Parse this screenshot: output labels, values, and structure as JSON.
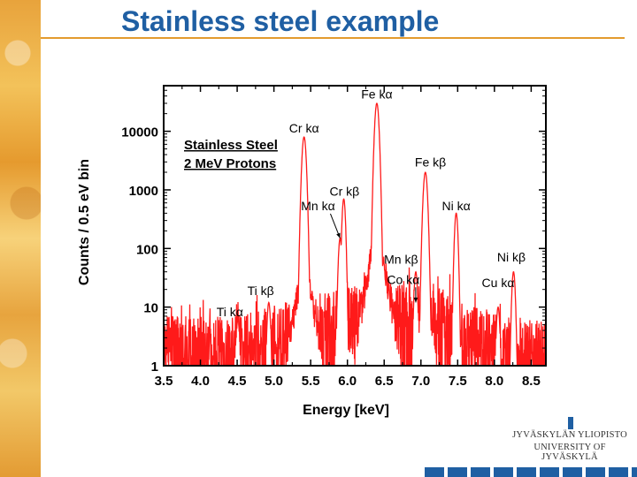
{
  "slide": {
    "title": "Stainless steel example"
  },
  "logo": {
    "line1": "JYVÄSKYLÄN YLIOPISTO",
    "line2": "UNIVERSITY OF JYVÄSKYLÄ"
  },
  "colors": {
    "title": "#1f5fa3",
    "accent_rule": "#e39b2e",
    "spectrum": "#ff1a1a"
  },
  "chart_data": {
    "type": "line",
    "title": "",
    "xlabel": "Energy [keV]",
    "ylabel": "Counts / 0.5 eV bin",
    "xscale": "linear",
    "yscale": "log",
    "xlim": [
      3.5,
      8.7
    ],
    "ylim": [
      1,
      60000
    ],
    "xticks": [
      3.5,
      4.0,
      4.5,
      5.0,
      5.5,
      6.0,
      6.5,
      7.0,
      7.5,
      8.0,
      8.5
    ],
    "xtick_labels": [
      "3.5",
      "4.0",
      "4.5",
      "5.0",
      "5.5",
      "6.0",
      "6.5",
      "7.0",
      "7.5",
      "8.0",
      "8.5"
    ],
    "yticks": [
      1,
      10,
      100,
      1000,
      10000
    ],
    "ytick_labels": [
      "1",
      "10",
      "100",
      "1000",
      "10000"
    ],
    "legend_box": [
      "Stainless Steel",
      "2 MeV Protons"
    ],
    "legend_position": "top-left",
    "series": [
      {
        "name": "Stainless steel, 2 MeV protons",
        "noise_envelope": [
          {
            "x": 3.5,
            "y": 2.5
          },
          {
            "x": 4.5,
            "y": 2.5
          },
          {
            "x": 4.9,
            "y": 3.5
          },
          {
            "x": 5.4,
            "y": 5
          },
          {
            "x": 6.0,
            "y": 8
          },
          {
            "x": 6.8,
            "y": 10
          },
          {
            "x": 7.2,
            "y": 9
          },
          {
            "x": 7.6,
            "y": 4
          },
          {
            "x": 8.2,
            "y": 2.5
          },
          {
            "x": 8.7,
            "y": 2
          }
        ],
        "peaks": [
          {
            "label": "Ti kα",
            "energy": 4.51,
            "counts": 6
          },
          {
            "label": "Ti kβ",
            "energy": 4.93,
            "counts": 12
          },
          {
            "label": "Cr kα",
            "energy": 5.41,
            "counts": 8000
          },
          {
            "label": "Mn kα",
            "energy": 5.9,
            "counts": 150
          },
          {
            "label": "Cr kβ",
            "energy": 5.95,
            "counts": 700
          },
          {
            "label": "Fe kα",
            "energy": 6.4,
            "counts": 30000
          },
          {
            "label": "Mn kβ",
            "energy": 6.49,
            "counts": 60
          },
          {
            "label": "Co kα",
            "energy": 6.93,
            "counts": 40
          },
          {
            "label": "Fe kβ",
            "energy": 7.06,
            "counts": 2000
          },
          {
            "label": "Ni kα",
            "energy": 7.48,
            "counts": 400
          },
          {
            "label": "Cu kα",
            "energy": 8.05,
            "counts": 10
          },
          {
            "label": "Ni kβ",
            "energy": 8.26,
            "counts": 40
          }
        ]
      }
    ],
    "annotations": [
      {
        "text": "Fe kα",
        "x": 6.4,
        "y": 36000
      },
      {
        "text": "Cr kα",
        "x": 5.41,
        "y": 9500
      },
      {
        "text": "Fe kβ",
        "x": 7.13,
        "y": 2500
      },
      {
        "text": "Cr kβ",
        "x": 5.96,
        "y": 800
      },
      {
        "text": "Ni kα",
        "x": 7.48,
        "y": 450
      },
      {
        "text": "Mn kα",
        "x": 5.6,
        "y": 450,
        "arrow_to": {
          "x": 5.9,
          "y": 150
        }
      },
      {
        "text": "Mn kβ",
        "x": 6.73,
        "y": 55
      },
      {
        "text": "Co kα",
        "x": 6.76,
        "y": 25,
        "arrow_to": {
          "x": 6.93,
          "y": 12
        }
      },
      {
        "text": "Ni kβ",
        "x": 8.23,
        "y": 60
      },
      {
        "text": "Cu kα",
        "x": 8.05,
        "y": 22
      },
      {
        "text": "Ti kβ",
        "x": 4.82,
        "y": 16
      },
      {
        "text": "Ti kα",
        "x": 4.4,
        "y": 7
      }
    ]
  }
}
